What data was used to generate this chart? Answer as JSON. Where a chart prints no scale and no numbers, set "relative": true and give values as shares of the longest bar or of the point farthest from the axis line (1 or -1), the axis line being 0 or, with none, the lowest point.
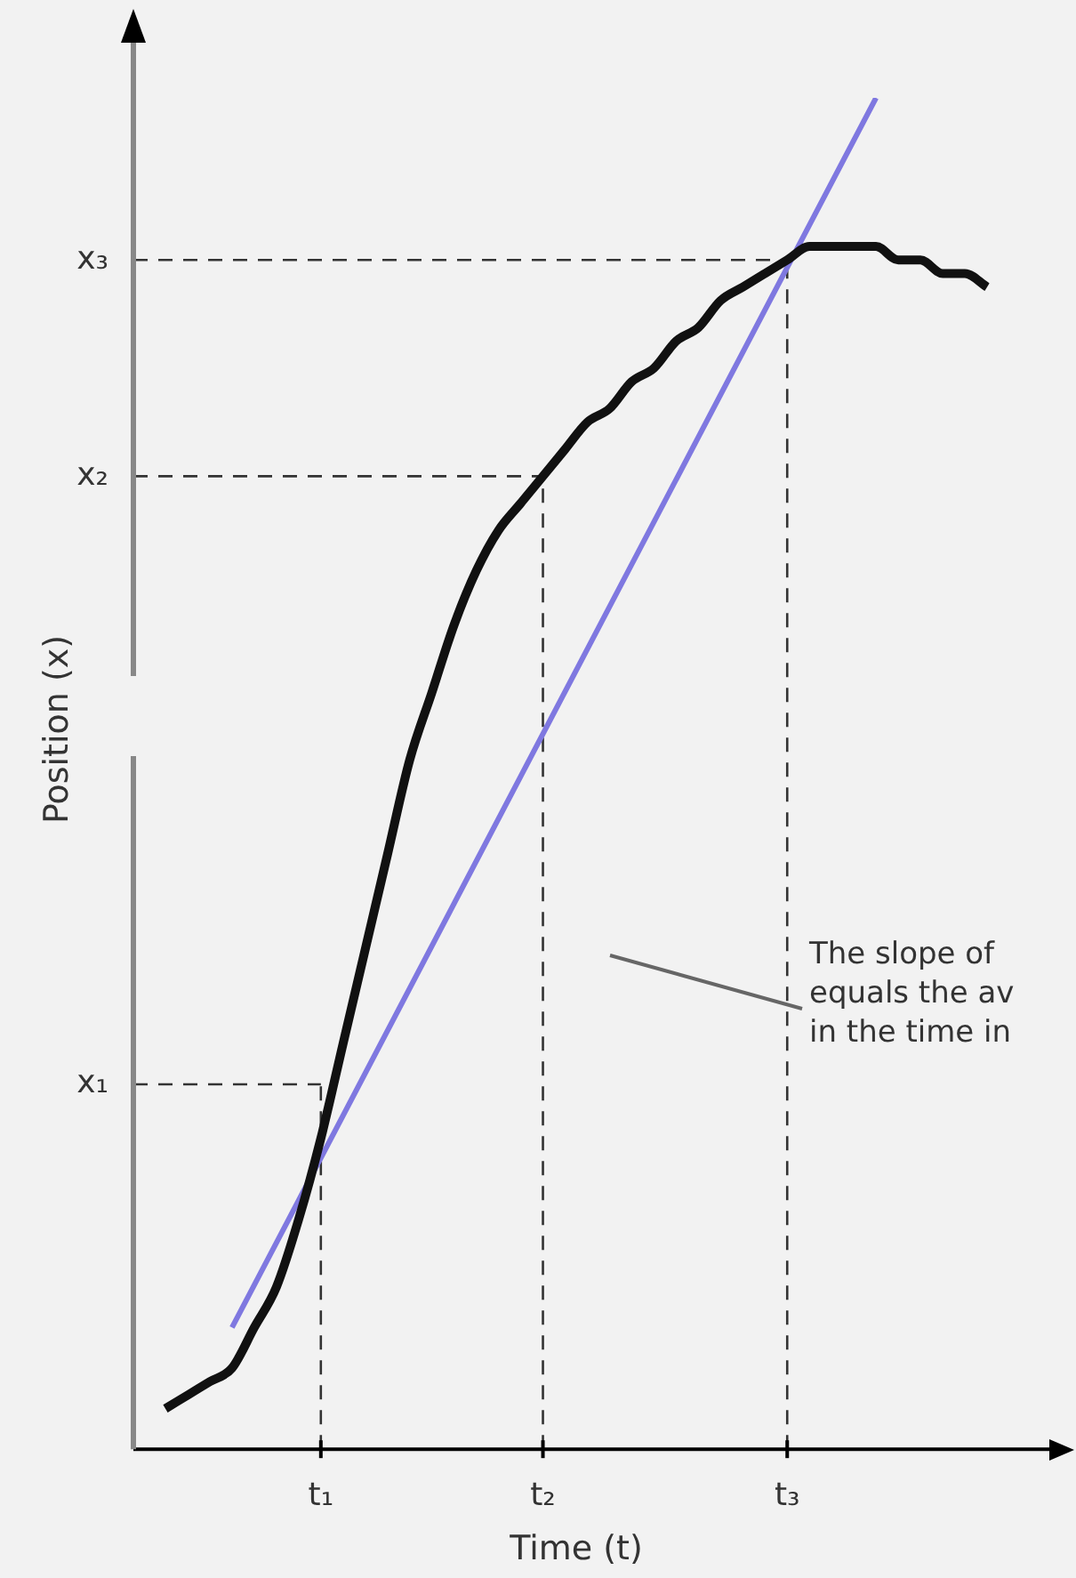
{
  "chart_data": {
    "type": "line",
    "relative": true,
    "xlabel": "Time (t)",
    "ylabel": "Position (x)",
    "categories": [
      null,
      null,
      null,
      null,
      null,
      null,
      null,
      "t₁",
      null,
      null,
      null,
      null,
      null,
      null,
      null,
      null,
      null,
      "t₂",
      null,
      null,
      null,
      null,
      null,
      null,
      null,
      null,
      null,
      null,
      "t₃",
      null,
      null,
      null,
      null,
      null,
      null,
      null,
      null,
      null
    ],
    "series": [
      {
        "color": "#111111",
        "values": [
          0.03,
          0.04,
          0.05,
          0.06,
          0.09,
          0.12,
          0.17,
          0.23,
          0.3,
          0.37,
          0.44,
          0.51,
          0.56,
          0.61,
          0.65,
          0.68,
          0.7,
          0.72,
          0.74,
          0.76,
          0.77,
          0.79,
          0.8,
          0.82,
          0.83,
          0.85,
          0.86,
          0.87,
          0.88,
          0.89,
          0.89,
          0.89,
          0.89,
          0.88,
          0.88,
          0.87,
          0.87,
          0.86
        ]
      },
      {
        "color": "#7f78e0",
        "values": [
          null,
          null,
          null,
          0.09,
          null,
          null,
          null,
          null,
          null,
          null,
          null,
          null,
          null,
          null,
          null,
          null,
          null,
          null,
          null,
          null,
          null,
          null,
          null,
          null,
          null,
          null,
          null,
          null,
          null,
          null,
          null,
          null,
          1,
          null,
          null,
          null,
          null,
          null
        ]
      }
    ],
    "ref_lines": [
      {
        "axis": "x",
        "value": "t₁",
        "label": null,
        "line_style": "dashed"
      },
      {
        "axis": "x",
        "value": "t₂",
        "label": null,
        "line_style": "dashed"
      },
      {
        "axis": "x",
        "value": "t₃",
        "label": null,
        "line_style": "dashed"
      },
      {
        "axis": "y",
        "value": 0.27,
        "label": "x₁",
        "line_style": "dashed"
      },
      {
        "axis": "y",
        "value": 0.72,
        "label": "x₂",
        "line_style": "dashed"
      },
      {
        "axis": "y",
        "value": 0.88,
        "label": "x₃",
        "line_style": "dashed"
      }
    ],
    "annotations": [
      "The slope of\nequals the av\nin the time in"
    ]
  }
}
